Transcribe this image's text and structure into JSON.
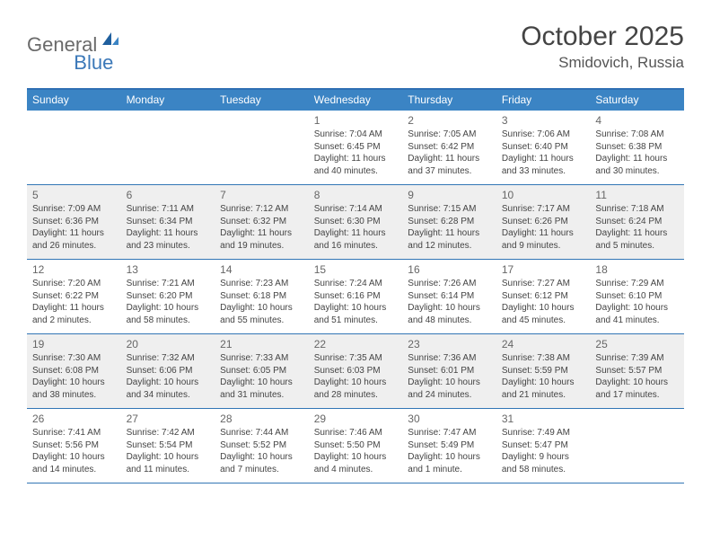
{
  "logo": {
    "word1": "General",
    "word2": "Blue"
  },
  "title": "October 2025",
  "location": "Smidovich, Russia",
  "colors": {
    "header_bar": "#3b84c4",
    "border": "#3276b5",
    "shade": "#efefef",
    "logo_gray": "#6a6a6a",
    "logo_blue": "#3b78b8"
  },
  "weekdays": [
    "Sunday",
    "Monday",
    "Tuesday",
    "Wednesday",
    "Thursday",
    "Friday",
    "Saturday"
  ],
  "weeks": [
    {
      "shaded": false,
      "days": [
        {
          "n": "",
          "sr": "",
          "ss": "",
          "dl": ""
        },
        {
          "n": "",
          "sr": "",
          "ss": "",
          "dl": ""
        },
        {
          "n": "",
          "sr": "",
          "ss": "",
          "dl": ""
        },
        {
          "n": "1",
          "sr": "7:04 AM",
          "ss": "6:45 PM",
          "dl": "11 hours and 40 minutes."
        },
        {
          "n": "2",
          "sr": "7:05 AM",
          "ss": "6:42 PM",
          "dl": "11 hours and 37 minutes."
        },
        {
          "n": "3",
          "sr": "7:06 AM",
          "ss": "6:40 PM",
          "dl": "11 hours and 33 minutes."
        },
        {
          "n": "4",
          "sr": "7:08 AM",
          "ss": "6:38 PM",
          "dl": "11 hours and 30 minutes."
        }
      ]
    },
    {
      "shaded": true,
      "days": [
        {
          "n": "5",
          "sr": "7:09 AM",
          "ss": "6:36 PM",
          "dl": "11 hours and 26 minutes."
        },
        {
          "n": "6",
          "sr": "7:11 AM",
          "ss": "6:34 PM",
          "dl": "11 hours and 23 minutes."
        },
        {
          "n": "7",
          "sr": "7:12 AM",
          "ss": "6:32 PM",
          "dl": "11 hours and 19 minutes."
        },
        {
          "n": "8",
          "sr": "7:14 AM",
          "ss": "6:30 PM",
          "dl": "11 hours and 16 minutes."
        },
        {
          "n": "9",
          "sr": "7:15 AM",
          "ss": "6:28 PM",
          "dl": "11 hours and 12 minutes."
        },
        {
          "n": "10",
          "sr": "7:17 AM",
          "ss": "6:26 PM",
          "dl": "11 hours and 9 minutes."
        },
        {
          "n": "11",
          "sr": "7:18 AM",
          "ss": "6:24 PM",
          "dl": "11 hours and 5 minutes."
        }
      ]
    },
    {
      "shaded": false,
      "days": [
        {
          "n": "12",
          "sr": "7:20 AM",
          "ss": "6:22 PM",
          "dl": "11 hours and 2 minutes."
        },
        {
          "n": "13",
          "sr": "7:21 AM",
          "ss": "6:20 PM",
          "dl": "10 hours and 58 minutes."
        },
        {
          "n": "14",
          "sr": "7:23 AM",
          "ss": "6:18 PM",
          "dl": "10 hours and 55 minutes."
        },
        {
          "n": "15",
          "sr": "7:24 AM",
          "ss": "6:16 PM",
          "dl": "10 hours and 51 minutes."
        },
        {
          "n": "16",
          "sr": "7:26 AM",
          "ss": "6:14 PM",
          "dl": "10 hours and 48 minutes."
        },
        {
          "n": "17",
          "sr": "7:27 AM",
          "ss": "6:12 PM",
          "dl": "10 hours and 45 minutes."
        },
        {
          "n": "18",
          "sr": "7:29 AM",
          "ss": "6:10 PM",
          "dl": "10 hours and 41 minutes."
        }
      ]
    },
    {
      "shaded": true,
      "days": [
        {
          "n": "19",
          "sr": "7:30 AM",
          "ss": "6:08 PM",
          "dl": "10 hours and 38 minutes."
        },
        {
          "n": "20",
          "sr": "7:32 AM",
          "ss": "6:06 PM",
          "dl": "10 hours and 34 minutes."
        },
        {
          "n": "21",
          "sr": "7:33 AM",
          "ss": "6:05 PM",
          "dl": "10 hours and 31 minutes."
        },
        {
          "n": "22",
          "sr": "7:35 AM",
          "ss": "6:03 PM",
          "dl": "10 hours and 28 minutes."
        },
        {
          "n": "23",
          "sr": "7:36 AM",
          "ss": "6:01 PM",
          "dl": "10 hours and 24 minutes."
        },
        {
          "n": "24",
          "sr": "7:38 AM",
          "ss": "5:59 PM",
          "dl": "10 hours and 21 minutes."
        },
        {
          "n": "25",
          "sr": "7:39 AM",
          "ss": "5:57 PM",
          "dl": "10 hours and 17 minutes."
        }
      ]
    },
    {
      "shaded": false,
      "days": [
        {
          "n": "26",
          "sr": "7:41 AM",
          "ss": "5:56 PM",
          "dl": "10 hours and 14 minutes."
        },
        {
          "n": "27",
          "sr": "7:42 AM",
          "ss": "5:54 PM",
          "dl": "10 hours and 11 minutes."
        },
        {
          "n": "28",
          "sr": "7:44 AM",
          "ss": "5:52 PM",
          "dl": "10 hours and 7 minutes."
        },
        {
          "n": "29",
          "sr": "7:46 AM",
          "ss": "5:50 PM",
          "dl": "10 hours and 4 minutes."
        },
        {
          "n": "30",
          "sr": "7:47 AM",
          "ss": "5:49 PM",
          "dl": "10 hours and 1 minute."
        },
        {
          "n": "31",
          "sr": "7:49 AM",
          "ss": "5:47 PM",
          "dl": "9 hours and 58 minutes."
        },
        {
          "n": "",
          "sr": "",
          "ss": "",
          "dl": ""
        }
      ]
    }
  ],
  "labels": {
    "sunrise": "Sunrise:",
    "sunset": "Sunset:",
    "daylight": "Daylight:"
  }
}
